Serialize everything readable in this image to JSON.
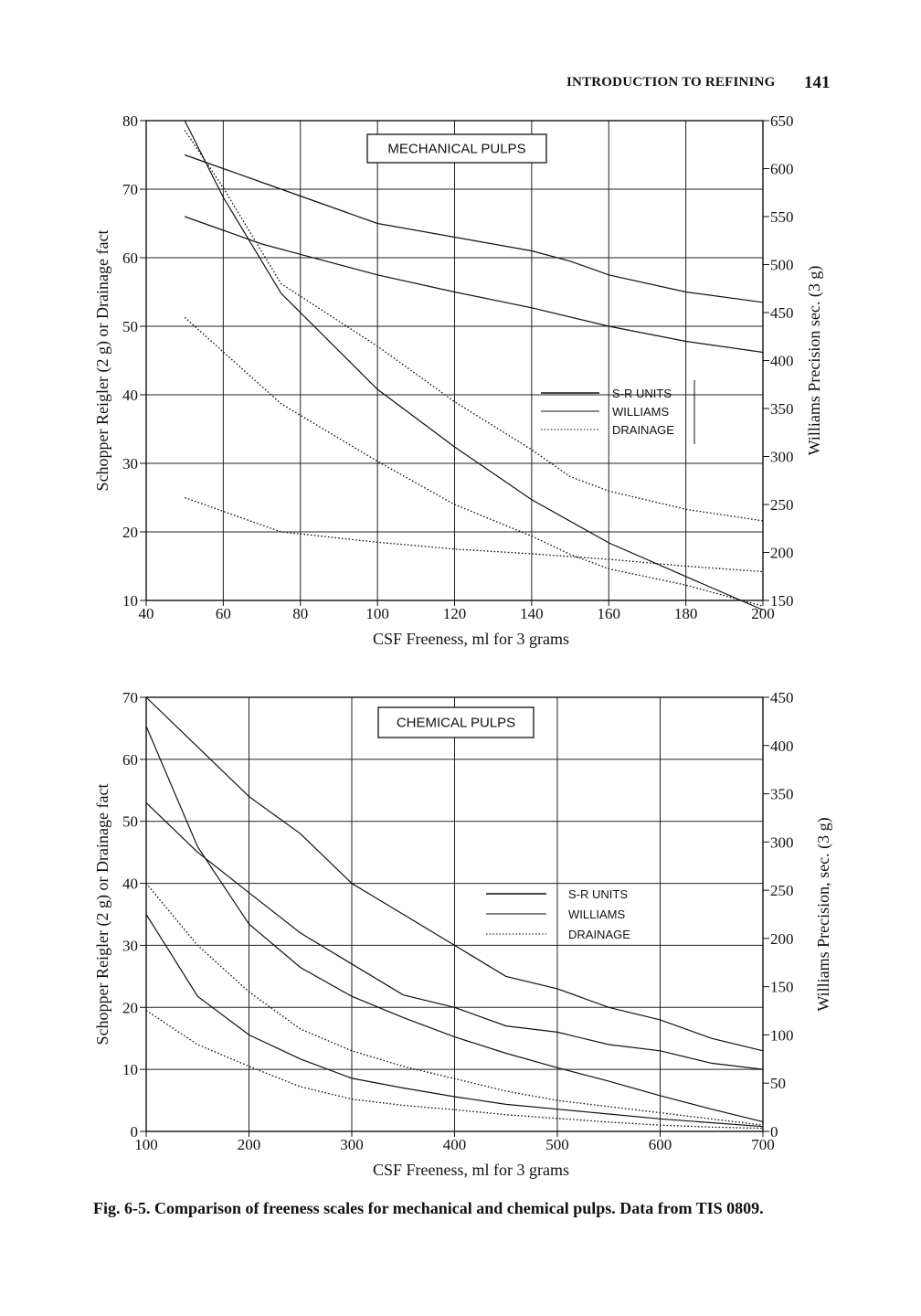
{
  "page": {
    "running_head": "INTRODUCTION TO REFINING",
    "page_number": "141",
    "caption": "Fig. 6-5.  Comparison of freeness scales for mechanical and chemical pulps.  Data from TIS 0809."
  },
  "chart_data": [
    {
      "type": "line",
      "title": "MECHANICAL PULPS",
      "xlabel": "CSF Freeness, ml  for 3 grams",
      "ylabel": "Schopper Reigler (2 g) or Drainage fact",
      "y2label": "Williams Precision sec. (3 g)",
      "xlim": [
        40,
        200
      ],
      "ylim": [
        10,
        80
      ],
      "y2lim": [
        150,
        650
      ],
      "x_ticks": [
        40,
        60,
        80,
        100,
        120,
        140,
        160,
        180,
        200
      ],
      "y_ticks": [
        10,
        20,
        30,
        40,
        50,
        60,
        70,
        80
      ],
      "y2_ticks": [
        150,
        200,
        250,
        300,
        350,
        400,
        450,
        500,
        550,
        600,
        650
      ],
      "grid": true,
      "legend": {
        "position": "center-right",
        "entries": [
          "S-R UNITS",
          "WILLIAMS",
          "DRAINAGE"
        ]
      },
      "series": [
        {
          "style": "solid",
          "axis": "y",
          "x": [
            50,
            60,
            70,
            80,
            100,
            120,
            140,
            160,
            180,
            200
          ],
          "values": [
            66,
            64,
            62,
            60.5,
            57.5,
            55,
            52.7,
            50,
            47.8,
            46.2
          ]
        },
        {
          "style": "solid",
          "axis": "y",
          "x": [
            50,
            60,
            70,
            80,
            100,
            120,
            140,
            150,
            160,
            180,
            200
          ],
          "values": [
            75,
            73,
            71,
            69,
            65,
            63,
            61,
            59.5,
            57.5,
            55,
            53.5
          ]
        },
        {
          "style": "dotted",
          "axis": "y",
          "x": [
            50,
            75,
            100,
            120,
            140,
            160,
            180,
            200
          ],
          "values": [
            25,
            20,
            18.5,
            17.5,
            16.8,
            16,
            15,
            14.2
          ]
        },
        {
          "style": "solid",
          "axis": "y2",
          "x": [
            50,
            60,
            75,
            100,
            120,
            140,
            160,
            180,
            200
          ],
          "values": [
            650,
            570,
            470,
            370,
            310,
            255,
            210,
            175,
            140
          ]
        },
        {
          "style": "dotted",
          "axis": "y2",
          "x": [
            50,
            60,
            75,
            100,
            120,
            140,
            150,
            160,
            180,
            200
          ],
          "values": [
            640,
            580,
            480,
            415,
            357,
            307,
            279,
            264,
            245,
            233
          ]
        },
        {
          "style": "dotted",
          "axis": "y2",
          "x": [
            50,
            75,
            100,
            120,
            140,
            150,
            160,
            180,
            200
          ],
          "values": [
            445,
            355,
            295,
            250,
            217,
            198,
            183,
            166,
            144
          ]
        }
      ]
    },
    {
      "type": "line",
      "title": "CHEMICAL PULPS",
      "xlabel": "CSF Freeness, ml  for 3 grams",
      "ylabel": "Schopper Reigler (2 g) or Drainage fact",
      "y2label": "Williams Precision, sec. (3 g)",
      "xlim": [
        100,
        700
      ],
      "ylim": [
        0,
        70
      ],
      "y2lim": [
        0,
        450
      ],
      "x_ticks": [
        100,
        200,
        300,
        400,
        500,
        600,
        700
      ],
      "y_ticks": [
        0,
        10,
        20,
        30,
        40,
        50,
        60,
        70
      ],
      "y2_ticks": [
        0,
        50,
        100,
        150,
        200,
        250,
        300,
        350,
        400,
        450
      ],
      "grid": true,
      "legend": {
        "position": "center-right",
        "entries": [
          "S-R UNITS",
          "WILLIAMS",
          "DRAINAGE"
        ]
      },
      "series": [
        {
          "style": "solid",
          "axis": "y",
          "x": [
            100,
            150,
            200,
            250,
            300,
            350,
            400,
            450,
            500,
            550,
            600,
            650,
            700
          ],
          "values": [
            53,
            45,
            38.5,
            32,
            27,
            22,
            20,
            17,
            16,
            14,
            13,
            11,
            10
          ]
        },
        {
          "style": "solid",
          "axis": "y",
          "x": [
            100,
            150,
            200,
            250,
            300,
            350,
            400,
            450,
            500,
            550,
            600,
            650,
            700
          ],
          "values": [
            70,
            62,
            54,
            48,
            40,
            35,
            30,
            25,
            23,
            20,
            18,
            15,
            13
          ]
        },
        {
          "style": "dotted",
          "axis": "y",
          "x": [
            100,
            150,
            200,
            250,
            300,
            350,
            400,
            450,
            500,
            550,
            600,
            650,
            700
          ],
          "values": [
            40,
            30,
            22.5,
            16.5,
            13,
            10.5,
            8.5,
            6.5,
            5,
            4,
            3,
            2,
            1
          ]
        },
        {
          "style": "dotted",
          "axis": "y",
          "x": [
            100,
            150,
            200,
            250,
            300,
            350,
            400,
            450,
            500,
            550,
            600,
            650,
            700
          ],
          "values": [
            19.5,
            14,
            10.5,
            7.2,
            5.2,
            4.2,
            3.5,
            2.7,
            2.1,
            1.5,
            1,
            0.7,
            0.5
          ]
        },
        {
          "style": "solid",
          "axis": "y2",
          "x": [
            100,
            150,
            200,
            250,
            300,
            350,
            400,
            450,
            500,
            550,
            600,
            650,
            700
          ],
          "values": [
            420,
            295,
            215,
            170,
            140,
            118,
            98,
            81,
            66,
            52,
            37,
            23,
            10
          ]
        },
        {
          "style": "solid",
          "axis": "y2",
          "x": [
            100,
            150,
            200,
            250,
            300,
            350,
            400,
            450,
            500,
            550,
            600,
            650,
            700
          ],
          "values": [
            225,
            140,
            100,
            75,
            55,
            45,
            36,
            28,
            23,
            18,
            13,
            9,
            5
          ]
        }
      ]
    }
  ]
}
